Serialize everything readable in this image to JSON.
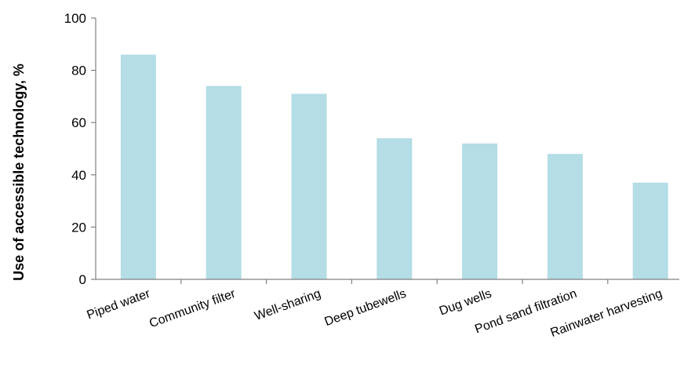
{
  "chart_data": {
    "type": "bar",
    "title": "",
    "xlabel": "",
    "ylabel": "Use of accessible technology, %",
    "ylim": [
      0,
      100
    ],
    "yticks": [
      0,
      20,
      40,
      60,
      80,
      100
    ],
    "categories": [
      "Piped water",
      "Community filter",
      "Well-sharing",
      "Deep tubewells",
      "Dug wells",
      "Pond sand filtration",
      "Rainwater harvesting"
    ],
    "values": [
      86,
      74,
      71,
      54,
      52,
      48,
      37
    ],
    "grid": false,
    "legend": "none",
    "bar_color": "#b4dde6",
    "axis_color": "#808080"
  }
}
